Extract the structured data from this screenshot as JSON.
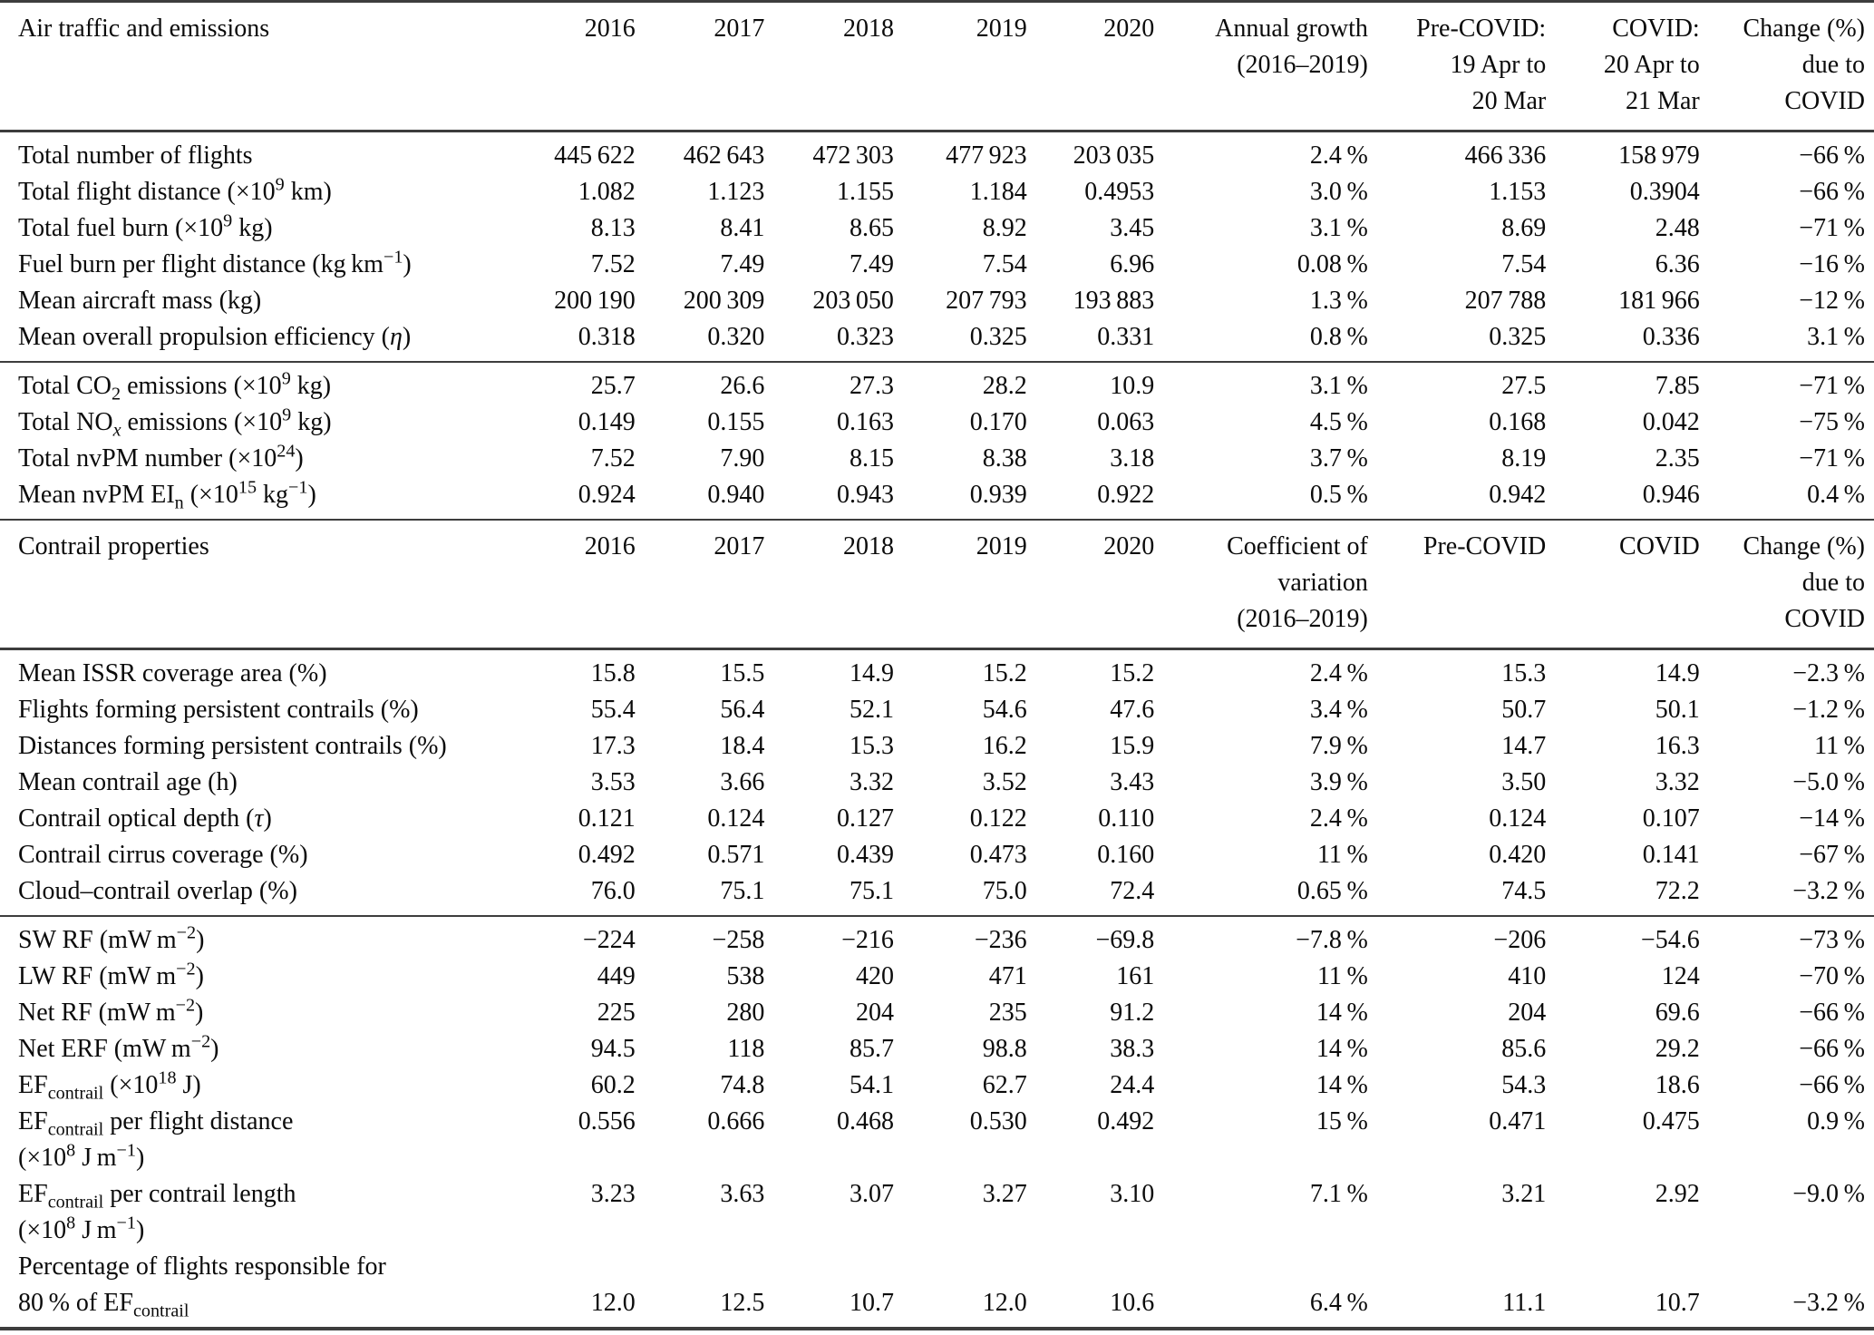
{
  "page": {
    "background": "#ffffff",
    "text_color": "#0b0b0b",
    "rule_color": "#3d3d3d"
  },
  "table": {
    "sections": [
      {
        "id": "air-traffic-and-emissions",
        "corner_label": "Air traffic and emissions",
        "column_headers": [
          [
            "2016"
          ],
          [
            "2017"
          ],
          [
            "2018"
          ],
          [
            "2019"
          ],
          [
            "2020"
          ],
          [
            "Annual growth",
            "(2016–2019)"
          ],
          [
            "Pre-COVID:",
            "19 Apr to",
            "20 Mar"
          ],
          [
            "COVID:",
            "20 Apr to",
            "21 Mar"
          ],
          [
            "Change (%)",
            "due to",
            "COVID"
          ]
        ],
        "row_groups": [
          {
            "rows": [
              {
                "label": [
                  "Total number of flights"
                ],
                "values": [
                  "445 622",
                  "462 643",
                  "472 303",
                  "477 923",
                  "203 035",
                  "2.4 %",
                  "466 336",
                  "158 979",
                  "−66 %"
                ]
              },
              {
                "label": [
                  "Total flight distance (×10^{9} km)"
                ],
                "values": [
                  "1.082",
                  "1.123",
                  "1.155",
                  "1.184",
                  "0.4953",
                  "3.0 %",
                  "1.153",
                  "0.3904",
                  "−66 %"
                ]
              },
              {
                "label": [
                  "Total fuel burn (×10^{9} kg)"
                ],
                "values": [
                  "8.13",
                  "8.41",
                  "8.65",
                  "8.92",
                  "3.45",
                  "3.1 %",
                  "8.69",
                  "2.48",
                  "−71 %"
                ]
              },
              {
                "label": [
                  "Fuel burn per flight distance (kg km^{−1})"
                ],
                "values": [
                  "7.52",
                  "7.49",
                  "7.49",
                  "7.54",
                  "6.96",
                  "0.08 %",
                  "7.54",
                  "6.36",
                  "−16 %"
                ]
              },
              {
                "label": [
                  "Mean aircraft mass (kg)"
                ],
                "values": [
                  "200 190",
                  "200 309",
                  "203 050",
                  "207 793",
                  "193 883",
                  "1.3 %",
                  "207 788",
                  "181 966",
                  "−12 %"
                ]
              },
              {
                "label": [
                  "Mean overall propulsion efficiency (*η*)"
                ],
                "values": [
                  "0.318",
                  "0.320",
                  "0.323",
                  "0.325",
                  "0.331",
                  "0.8 %",
                  "0.325",
                  "0.336",
                  "3.1 %"
                ]
              }
            ]
          },
          {
            "rows": [
              {
                "label": [
                  "Total CO_{2} emissions (×10^{9} kg)"
                ],
                "values": [
                  "25.7",
                  "26.6",
                  "27.3",
                  "28.2",
                  "10.9",
                  "3.1 %",
                  "27.5",
                  "7.85",
                  "−71 %"
                ]
              },
              {
                "label": [
                  "Total NO_{*x*} emissions (×10^{9} kg)"
                ],
                "values": [
                  "0.149",
                  "0.155",
                  "0.163",
                  "0.170",
                  "0.063",
                  "4.5 %",
                  "0.168",
                  "0.042",
                  "−75 %"
                ]
              },
              {
                "label": [
                  "Total nvPM number (×10^{24})"
                ],
                "values": [
                  "7.52",
                  "7.90",
                  "8.15",
                  "8.38",
                  "3.18",
                  "3.7 %",
                  "8.19",
                  "2.35",
                  "−71 %"
                ]
              },
              {
                "label": [
                  "Mean nvPM EI_{n} (×10^{15} kg^{−1})"
                ],
                "values": [
                  "0.924",
                  "0.940",
                  "0.943",
                  "0.939",
                  "0.922",
                  "0.5 %",
                  "0.942",
                  "0.946",
                  "0.4 %"
                ]
              }
            ]
          }
        ]
      },
      {
        "id": "contrail-properties",
        "corner_label": "Contrail properties",
        "column_headers": [
          [
            "2016"
          ],
          [
            "2017"
          ],
          [
            "2018"
          ],
          [
            "2019"
          ],
          [
            "2020"
          ],
          [
            "Coefficient of",
            "variation",
            "(2016–2019)"
          ],
          [
            "Pre-COVID"
          ],
          [
            "COVID"
          ],
          [
            "Change (%)",
            "due to",
            "COVID"
          ]
        ],
        "row_groups": [
          {
            "rows": [
              {
                "label": [
                  "Mean ISSR coverage area (%)"
                ],
                "values": [
                  "15.8",
                  "15.5",
                  "14.9",
                  "15.2",
                  "15.2",
                  "2.4 %",
                  "15.3",
                  "14.9",
                  "−2.3 %"
                ]
              },
              {
                "label": [
                  "Flights forming persistent contrails (%)"
                ],
                "values": [
                  "55.4",
                  "56.4",
                  "52.1",
                  "54.6",
                  "47.6",
                  "3.4 %",
                  "50.7",
                  "50.1",
                  "−1.2 %"
                ]
              },
              {
                "label": [
                  "Distances forming persistent contrails (%)"
                ],
                "values": [
                  "17.3",
                  "18.4",
                  "15.3",
                  "16.2",
                  "15.9",
                  "7.9 %",
                  "14.7",
                  "16.3",
                  "11 %"
                ]
              },
              {
                "label": [
                  "Mean contrail age (h)"
                ],
                "values": [
                  "3.53",
                  "3.66",
                  "3.32",
                  "3.52",
                  "3.43",
                  "3.9 %",
                  "3.50",
                  "3.32",
                  "−5.0 %"
                ]
              },
              {
                "label": [
                  "Contrail optical depth (*τ*)"
                ],
                "values": [
                  "0.121",
                  "0.124",
                  "0.127",
                  "0.122",
                  "0.110",
                  "2.4 %",
                  "0.124",
                  "0.107",
                  "−14 %"
                ]
              },
              {
                "label": [
                  "Contrail cirrus coverage (%)"
                ],
                "values": [
                  "0.492",
                  "0.571",
                  "0.439",
                  "0.473",
                  "0.160",
                  "11 %",
                  "0.420",
                  "0.141",
                  "−67 %"
                ]
              },
              {
                "label": [
                  "Cloud–contrail overlap (%)"
                ],
                "values": [
                  "76.0",
                  "75.1",
                  "75.1",
                  "75.0",
                  "72.4",
                  "0.65 %",
                  "74.5",
                  "72.2",
                  "−3.2 %"
                ]
              }
            ]
          },
          {
            "rows": [
              {
                "label": [
                  "SW RF (mW m^{−2})"
                ],
                "values": [
                  "−224",
                  "−258",
                  "−216",
                  "−236",
                  "−69.8",
                  "−7.8 %",
                  "−206",
                  "−54.6",
                  "−73 %"
                ]
              },
              {
                "label": [
                  "LW RF (mW m^{−2})"
                ],
                "values": [
                  "449",
                  "538",
                  "420",
                  "471",
                  "161",
                  "11 %",
                  "410",
                  "124",
                  "−70 %"
                ]
              },
              {
                "label": [
                  "Net RF (mW m^{−2})"
                ],
                "values": [
                  "225",
                  "280",
                  "204",
                  "235",
                  "91.2",
                  "14 %",
                  "204",
                  "69.6",
                  "−66 %"
                ]
              },
              {
                "label": [
                  "Net ERF (mW m^{−2})"
                ],
                "values": [
                  "94.5",
                  "118",
                  "85.7",
                  "98.8",
                  "38.3",
                  "14 %",
                  "85.6",
                  "29.2",
                  "−66 %"
                ]
              },
              {
                "label": [
                  "EF_{contrail} (×10^{18} J)"
                ],
                "values": [
                  "60.2",
                  "74.8",
                  "54.1",
                  "62.7",
                  "24.4",
                  "14 %",
                  "54.3",
                  "18.6",
                  "−66 %"
                ]
              },
              {
                "label": [
                  "EF_{contrail} per flight distance",
                  "(×10^{8} J m^{−1})"
                ],
                "values_line": 0,
                "values": [
                  "0.556",
                  "0.666",
                  "0.468",
                  "0.530",
                  "0.492",
                  "15 %",
                  "0.471",
                  "0.475",
                  "0.9 %"
                ]
              },
              {
                "label": [
                  "EF_{contrail} per contrail length",
                  "(×10^{8} J m^{−1})"
                ],
                "values_line": 0,
                "values": [
                  "3.23",
                  "3.63",
                  "3.07",
                  "3.27",
                  "3.10",
                  "7.1 %",
                  "3.21",
                  "2.92",
                  "−9.0 %"
                ]
              },
              {
                "label": [
                  "Percentage of flights responsible for",
                  "80 % of EF_{contrail}"
                ],
                "values_line": 1,
                "values": [
                  "12.0",
                  "12.5",
                  "10.7",
                  "12.0",
                  "10.6",
                  "6.4 %",
                  "11.1",
                  "10.7",
                  "−3.2 %"
                ]
              }
            ]
          }
        ]
      }
    ],
    "column_width_percents": [
      27.1,
      6.8,
      6.9,
      6.9,
      7.1,
      6.8,
      11.4,
      9.5,
      8.2,
      9.3
    ]
  }
}
